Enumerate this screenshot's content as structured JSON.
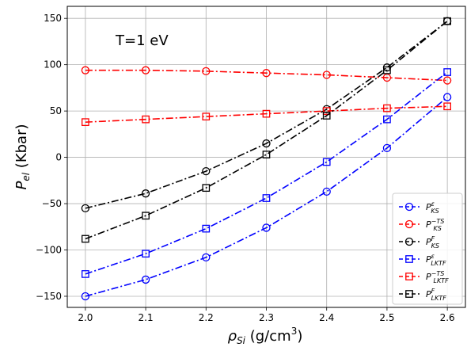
{
  "chart_data": {
    "type": "line",
    "title": "",
    "annotation": "T=1 eV",
    "xlabel": {
      "base": "ρ",
      "sub": "Si",
      "unit": " (g/cm",
      "sup": "3",
      "close": ")"
    },
    "ylabel": {
      "base": "P",
      "sub": "el",
      "unit": " (Kbar)"
    },
    "xlim": [
      1.97,
      2.63
    ],
    "ylim": [
      -162,
      163
    ],
    "xticks": [
      2.0,
      2.1,
      2.2,
      2.3,
      2.4,
      2.5,
      2.6
    ],
    "xtick_labels": [
      "2.0",
      "2.1",
      "2.2",
      "2.3",
      "2.4",
      "2.5",
      "2.6"
    ],
    "yticks": [
      -150,
      -100,
      -50,
      0,
      50,
      100,
      150
    ],
    "ytick_labels": [
      "−150",
      "−100",
      "−50",
      "0",
      "50",
      "100",
      "150"
    ],
    "grid": true,
    "legend_position": "bottom-right",
    "x": [
      2.0,
      2.1,
      2.2,
      2.3,
      2.4,
      2.5,
      2.6
    ],
    "series": [
      {
        "legend": {
          "base": "P",
          "sup": "ε",
          "sub": "KS"
        },
        "color": "#0000ff",
        "marker": "circle",
        "dash": "dashdot",
        "values": [
          -150,
          -132,
          -108,
          -76,
          -37,
          10,
          65
        ]
      },
      {
        "legend": {
          "base": "P",
          "sup": "−TS",
          "sub": "KS"
        },
        "color": "#ff0000",
        "marker": "circle",
        "dash": "dashdot",
        "values": [
          94,
          94,
          93,
          91,
          89,
          86,
          83
        ]
      },
      {
        "legend": {
          "base": "P",
          "sup": "F",
          "sub": "KS"
        },
        "color": "#000000",
        "marker": "circle",
        "dash": "dashdot",
        "values": [
          -55,
          -39,
          -15,
          15,
          52,
          97,
          147
        ]
      },
      {
        "legend": {
          "base": "P",
          "sup": "ε",
          "sub": "LKTF"
        },
        "color": "#0000ff",
        "marker": "square",
        "dash": "dashdot",
        "values": [
          -126,
          -104,
          -77,
          -44,
          -5,
          41,
          92
        ]
      },
      {
        "legend": {
          "base": "P",
          "sup": "−TS",
          "sub": "LKTF"
        },
        "color": "#ff0000",
        "marker": "square",
        "dash": "dashdot",
        "values": [
          38,
          41,
          44,
          47,
          50,
          53,
          55
        ]
      },
      {
        "legend": {
          "base": "P",
          "sup": "F",
          "sub": "LKTF"
        },
        "color": "#000000",
        "marker": "square",
        "dash": "dashdot",
        "values": [
          -88,
          -63,
          -33,
          3,
          45,
          94,
          147
        ]
      }
    ]
  }
}
